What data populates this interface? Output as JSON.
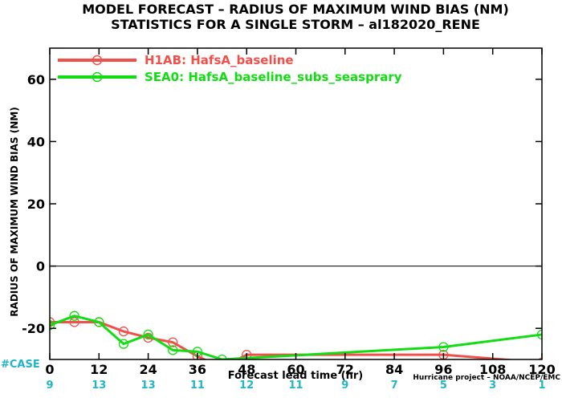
{
  "chart_data": {
    "type": "line",
    "title": "MODEL FORECAST – RADIUS OF MAXIMUM WIND BIAS (NM)",
    "subtitle": "STATISTICS FOR A SINGLE STORM – al182020_RENE",
    "xlabel": "Forecast lead time (hr)",
    "ylabel": "RADIUS OF MAXIMUM WIND BIAS (NM)",
    "xlim": [
      0,
      120
    ],
    "ylim": [
      -30,
      70
    ],
    "xticks": [
      0,
      12,
      24,
      36,
      48,
      60,
      72,
      84,
      96,
      108,
      120
    ],
    "yticks": [
      -20,
      0,
      20,
      40,
      60
    ],
    "zero_line": true,
    "grid": false,
    "legend_position": "top-left",
    "series": [
      {
        "name": "H1AB: HafsA_baseline",
        "color": "#f0504a",
        "x": [
          0,
          6,
          12,
          18,
          24,
          30,
          36,
          42,
          48,
          96,
          120
        ],
        "y": [
          -18,
          -18,
          -18,
          -21,
          -23,
          -24.5,
          -29,
          -32.5,
          -28.5,
          -28.5,
          -31
        ]
      },
      {
        "name": "SEA0: HafsA_baseline_subs_seasprary",
        "color": "#12dd12",
        "x": [
          0,
          6,
          12,
          18,
          24,
          30,
          36,
          42,
          96,
          120
        ],
        "y": [
          -19,
          -16,
          -18,
          -25,
          -22,
          -27,
          -27.5,
          -30,
          -26,
          -22
        ]
      }
    ],
    "cases": {
      "label": "#CASE",
      "x": [
        0,
        12,
        24,
        36,
        48,
        60,
        72,
        84,
        96,
        108,
        120
      ],
      "values": [
        "9",
        "13",
        "13",
        "11",
        "12",
        "11",
        "9",
        "7",
        "5",
        "3",
        "1"
      ]
    },
    "credit": "Hurricane project – NOAA/NCEP/EMC"
  }
}
